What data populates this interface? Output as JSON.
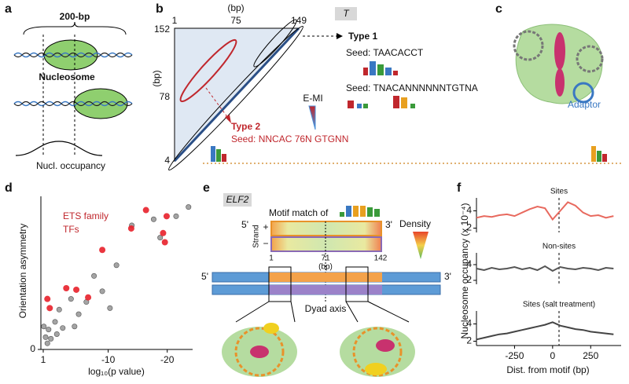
{
  "figure": {
    "a": {
      "letter": "a",
      "span": "200-bp",
      "nucleosome": "Nucleosome",
      "occupancy": "Nucl. occupancy"
    },
    "b": {
      "letter": "b",
      "x_unit": "(bp)",
      "y_unit": "(bp)",
      "x_tick_left": "1",
      "x_tick_mid": "75",
      "x_tick_right": "149",
      "y_tick_top": "152",
      "y_tick_mid": "78",
      "y_tick_bottom": "4",
      "factor": "T",
      "colorbar": "E-MI",
      "type1": {
        "title": "Type 1",
        "seed1": "Seed: TAACACCT",
        "seed2": "Seed: TNACANNNNNNTGTNA"
      },
      "type2": {
        "title": "Type 2",
        "seed": "Seed: NNCAC 76N GTGNN"
      }
    },
    "c": {
      "letter": "c",
      "adaptor": "Adaptor"
    },
    "d": {
      "letter": "d"
    },
    "e": {
      "letter": "e",
      "factor": "ELF2",
      "motif": "Motif match of",
      "five": "5'",
      "three": "3'",
      "strand": "Strand",
      "plus": "+",
      "minus": "−",
      "pos_start": "1",
      "pos_mid": "71",
      "pos_end": "142",
      "unit": "(bp)",
      "density": "Density",
      "five2": "5'",
      "three2": "3'",
      "dyad": "Dyad axis"
    },
    "f": {
      "letter": "f"
    }
  },
  "chart_data": [
    {
      "type": "scatter",
      "x_label": "log₁₀(p value)",
      "y_label": "Orientation asymmetry",
      "annotation_lines": [
        "ETS family",
        "TFs"
      ],
      "xlim": [
        1.4,
        -24.3
      ],
      "xticks": [
        1,
        -10,
        -20
      ],
      "ylim": [
        0,
        1
      ],
      "yticks": [
        0
      ],
      "series": [
        {
          "color": "#9a9a9a",
          "x": [
            -23.6,
            -21.5,
            -17.7,
            -18.8,
            -14,
            -11.4,
            -7.6,
            -9,
            -6.3,
            -3.7,
            -1.7,
            -1,
            0.1,
            0.6,
            -0.3,
            0.3,
            -2.3,
            -5,
            -10.3,
            -4.3,
            -1.3,
            0.9
          ],
          "values": [
            0.93,
            0.87,
            0.85,
            0.73,
            0.81,
            0.55,
            0.48,
            0.38,
            0.31,
            0.33,
            0.26,
            0.18,
            0.13,
            0.08,
            0.07,
            0.04,
            0.14,
            0.23,
            0.27,
            0.15,
            0.1,
            0.15
          ]
        },
        {
          "color": "#e8202a",
          "x": [
            -16.4,
            -19.9,
            -13.9,
            -19.3,
            -9,
            -19.6,
            -2.9,
            -4.6,
            0.3,
            -0.1,
            -6.6
          ],
          "values": [
            0.91,
            0.87,
            0.79,
            0.76,
            0.65,
            0.7,
            0.4,
            0.39,
            0.33,
            0.27,
            0.34
          ]
        }
      ]
    },
    {
      "type": "line",
      "title": "Sites",
      "y_label": "Nucleosome occupancy (x 10⁻⁴)",
      "color": "#e8695e",
      "x": [
        -500,
        -450,
        -400,
        -350,
        -300,
        -250,
        -200,
        -150,
        -100,
        -50,
        0,
        50,
        100,
        150,
        200,
        250,
        300,
        350,
        400
      ],
      "values": [
        3.2,
        3.4,
        3.3,
        3.5,
        3.6,
        3.4,
        3.8,
        4.2,
        4.5,
        4.3,
        3.0,
        4.0,
        5.0,
        4.6,
        3.8,
        3.4,
        3.5,
        3.2,
        3.4
      ],
      "xlim": [
        -500,
        450
      ],
      "ylim": [
        1.5,
        5.5
      ],
      "yticks": [
        2,
        4
      ]
    },
    {
      "type": "line",
      "title": "Non-sites",
      "color": "#555555",
      "x": [
        -500,
        -450,
        -400,
        -350,
        -300,
        -250,
        -200,
        -150,
        -100,
        -50,
        0,
        50,
        100,
        150,
        200,
        250,
        300,
        350,
        400
      ],
      "values": [
        3.5,
        3.3,
        3.6,
        3.4,
        3.5,
        3.7,
        3.4,
        3.6,
        3.3,
        3.8,
        3.2,
        3.7,
        3.5,
        3.4,
        3.6,
        3.5,
        3.3,
        3.6,
        3.5
      ],
      "xlim": [
        -500,
        450
      ],
      "ylim": [
        1.5,
        5.5
      ],
      "yticks": [
        2,
        4
      ]
    },
    {
      "type": "line",
      "title": "Sites (salt treatment)",
      "x_label": "Dist. from motif (bp)",
      "color": "#444444",
      "x": [
        -500,
        -450,
        -400,
        -350,
        -300,
        -250,
        -200,
        -150,
        -100,
        -50,
        0,
        50,
        100,
        150,
        200,
        250,
        300,
        350,
        400
      ],
      "values": [
        2.2,
        2.4,
        2.6,
        2.8,
        2.9,
        3.1,
        3.3,
        3.5,
        3.7,
        3.9,
        4.2,
        3.8,
        3.6,
        3.4,
        3.3,
        3.1,
        3.0,
        2.9,
        2.8
      ],
      "xlim": [
        -500,
        450
      ],
      "xticks": [
        -250,
        0,
        250
      ],
      "ylim": [
        1.5,
        5.5
      ],
      "yticks": [
        2,
        4
      ]
    }
  ]
}
